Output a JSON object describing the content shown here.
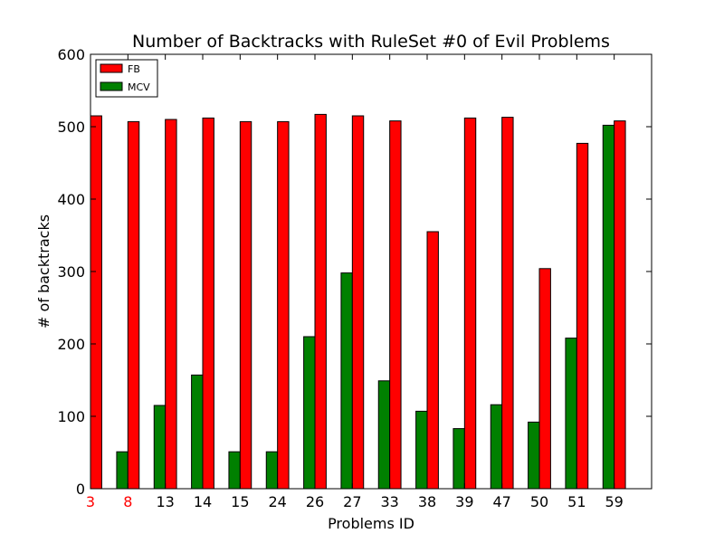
{
  "chart_data": {
    "type": "bar",
    "title": "Number of Backtracks with RuleSet #0 of Evil Problems",
    "xlabel": "Problems ID",
    "ylabel": "# of backtracks",
    "ylim": [
      0,
      600
    ],
    "yticks": [
      0,
      100,
      200,
      300,
      400,
      500,
      600
    ],
    "categories": [
      "3",
      "8",
      "13",
      "14",
      "15",
      "24",
      "26",
      "27",
      "33",
      "38",
      "39",
      "47",
      "50",
      "51",
      "59"
    ],
    "highlighted_categories": [
      "3",
      "8"
    ],
    "highlight_color": "#ff0000",
    "series": [
      {
        "name": "FB",
        "color": "#ff0000",
        "values": [
          515,
          507,
          510,
          512,
          507,
          507,
          517,
          515,
          508,
          355,
          512,
          513,
          304,
          477,
          508
        ]
      },
      {
        "name": "MCV",
        "color": "#008000",
        "values": [
          0,
          51,
          115,
          157,
          51,
          51,
          210,
          298,
          149,
          107,
          83,
          116,
          92,
          208,
          502
        ]
      }
    ],
    "legend_position": "top-left",
    "grid": false
  }
}
